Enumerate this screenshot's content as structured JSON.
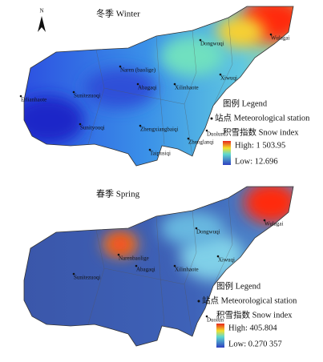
{
  "panels": [
    {
      "title": "冬季 Winter",
      "north": "N",
      "stations": [
        "Wulagai",
        "Dongwuqi",
        "Xiwuqi",
        "Naren (baolige)",
        "Abagaqi",
        "Xilinhaote",
        "Sunitezuoqi",
        "Erlianhaote",
        "Sunityouqi",
        "Zhengxiangbaiqi",
        "Zhenglanqi",
        "Duolun",
        "Taipusiqi"
      ],
      "legend": {
        "title": "图例 Legend",
        "station": "站点 Meteorological station",
        "index": "积雪指数 Snow index",
        "high": "High: 1 503.95",
        "low": "Low: 12.696"
      }
    },
    {
      "title": "春季 Spring",
      "stations": [
        "Wulagai",
        "Dongwuqi",
        "Xiwuqi",
        "Narenbaolige",
        "Abagaqi",
        "Xilinhaote",
        "Sunitezuoqi",
        "Duolun"
      ],
      "legend": {
        "title": "图例 Legend",
        "station": "站点 Meteorological station",
        "index": "积雪指数 Snow index",
        "high": "High: 405.804",
        "low": "Low: 0.270 357"
      }
    }
  ]
}
